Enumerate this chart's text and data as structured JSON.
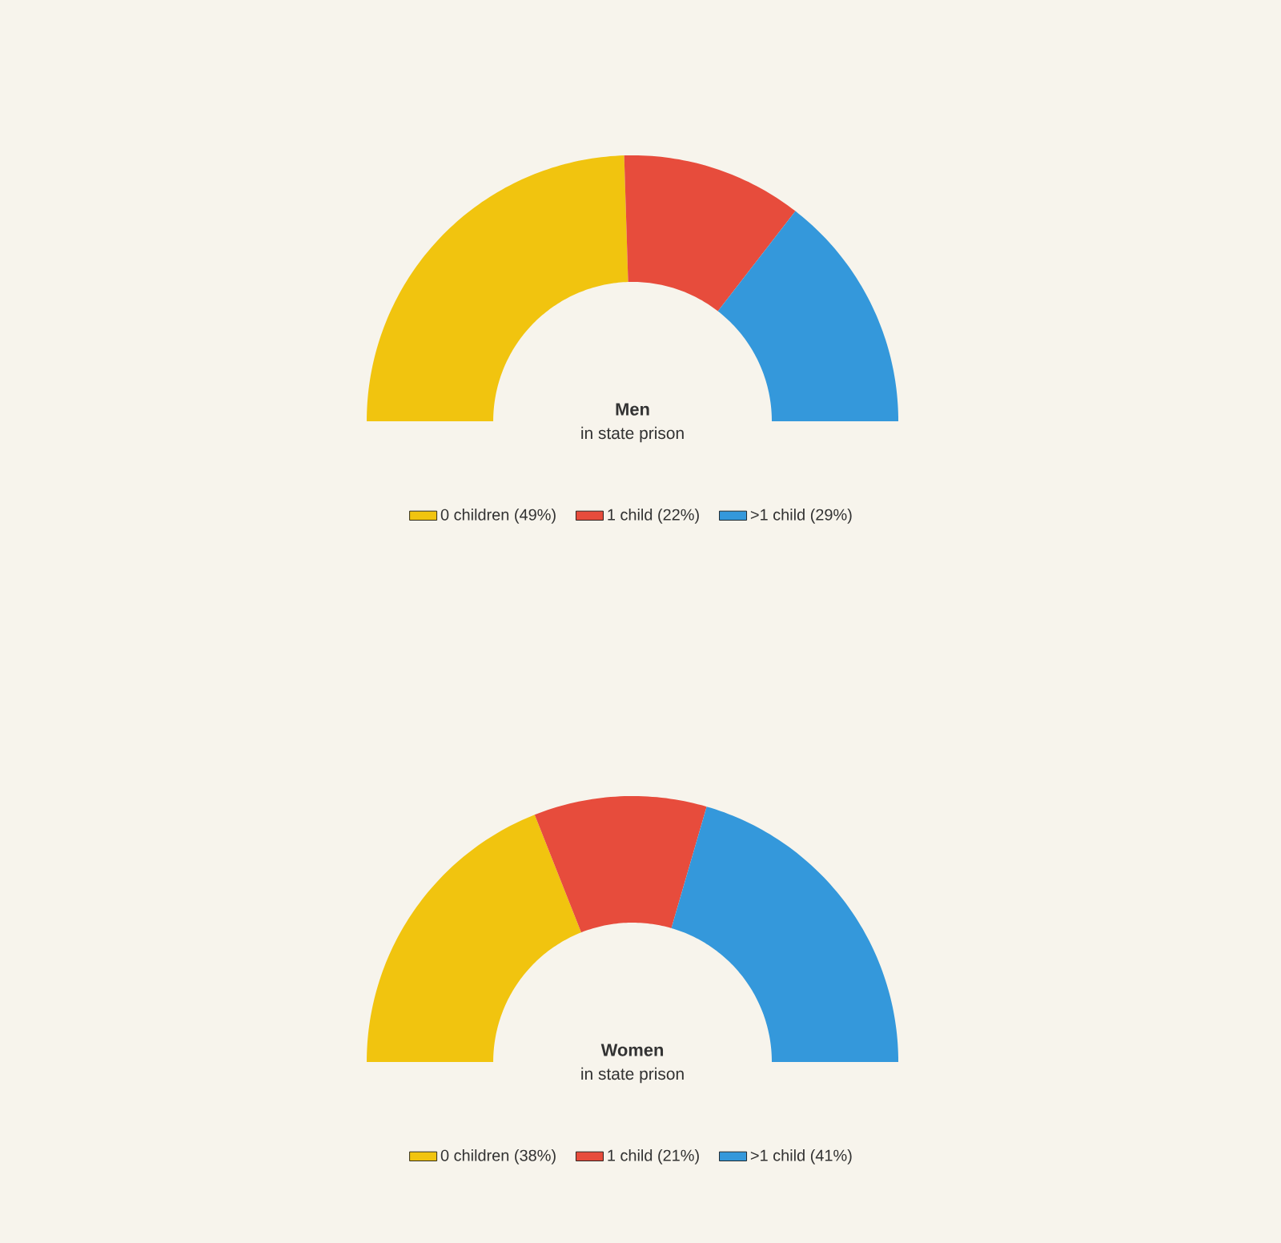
{
  "chart_data": [
    {
      "type": "donut",
      "title": "Men",
      "subtitle": "in state prison",
      "categories": [
        "0 children (49%)",
        "1 child (22%)",
        ">1 child (29%)"
      ],
      "values": [
        49,
        22,
        29
      ],
      "colors": [
        "#f1c40f",
        "#e74c3c",
        "#3498db"
      ],
      "legend": "bottom"
    },
    {
      "type": "donut",
      "title": "Women",
      "subtitle": "in state prison",
      "categories": [
        "0 children (38%)",
        "1 child (21%)",
        ">1 child (41%)"
      ],
      "values": [
        38,
        21,
        41
      ],
      "colors": [
        "#f1c40f",
        "#e74c3c",
        "#3498db"
      ],
      "legend": "bottom"
    }
  ]
}
